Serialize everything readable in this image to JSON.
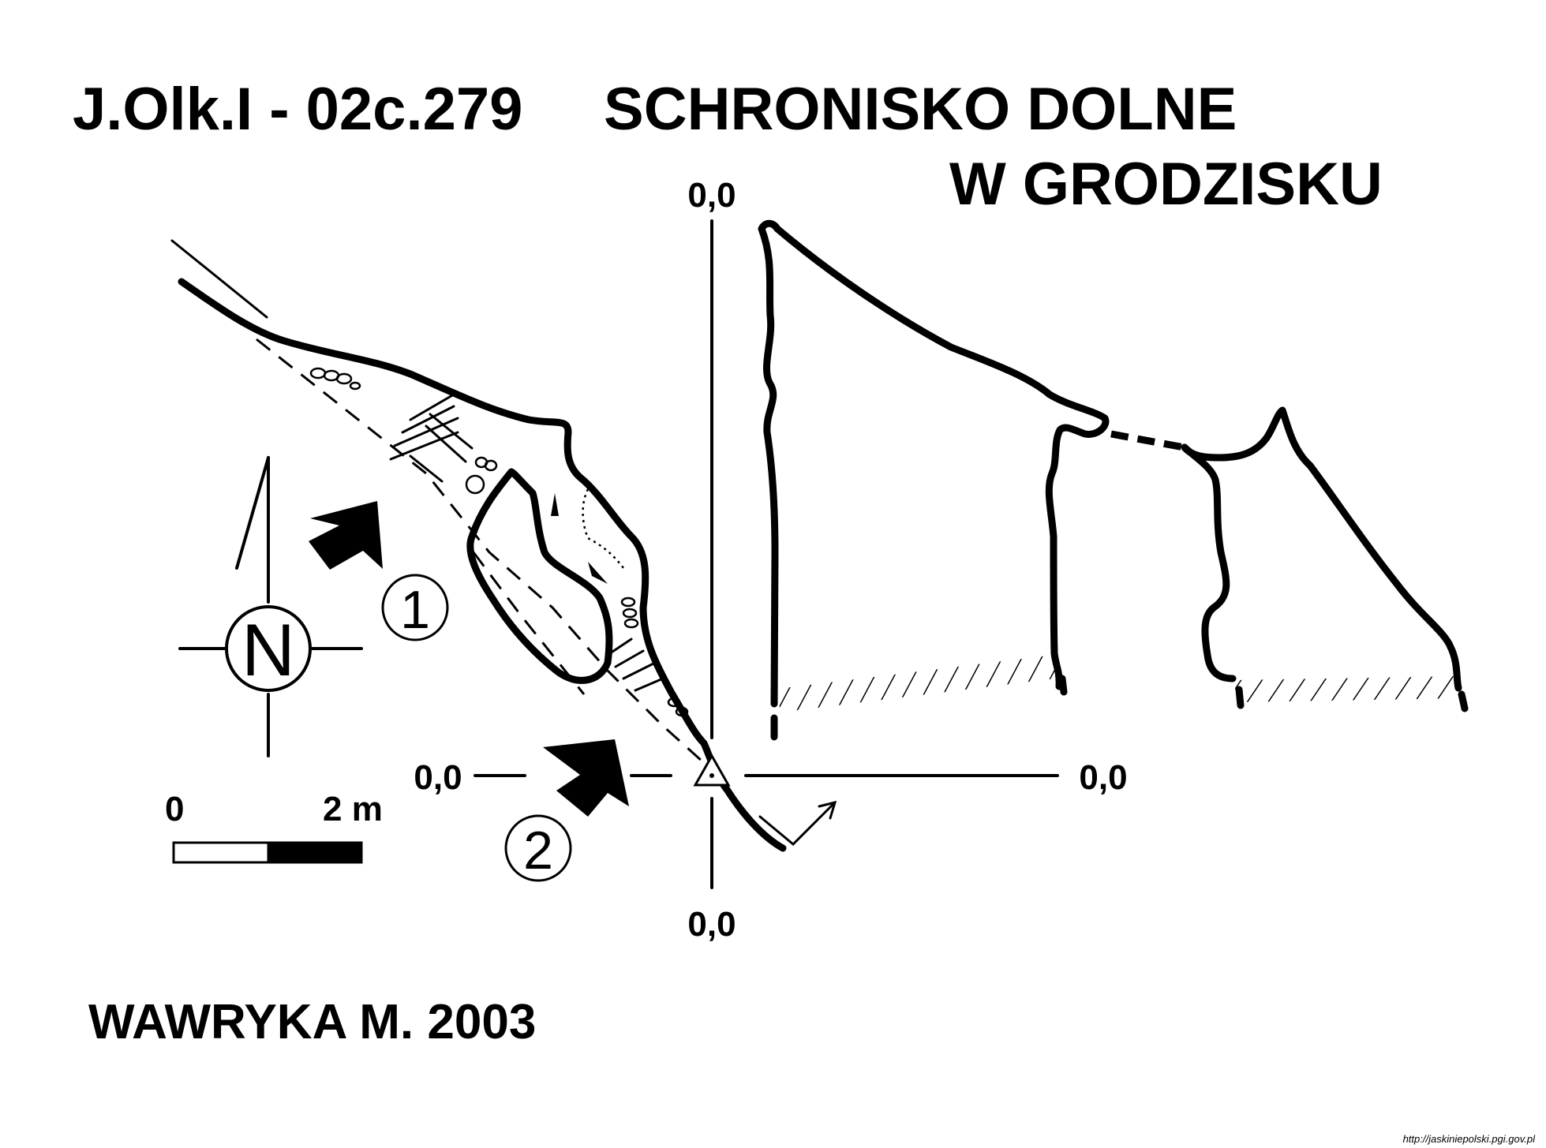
{
  "title": {
    "code": "J.Olk.I - 02c.279",
    "name_line1": "SCHRONISKO DOLNE",
    "name_line2": "W GRODZISKU"
  },
  "profile_labels": {
    "top": "0,0",
    "left": "0,0",
    "right": "0,0",
    "bottom": "0,0"
  },
  "compass": {
    "letter": "N"
  },
  "scale_bar": {
    "start_label": "0",
    "end_label": "2 m"
  },
  "section_markers": [
    "1",
    "2"
  ],
  "author": "WAWRYKA M. 2003",
  "source_url": "http://jaskiniepolski.pgi.gov.pl",
  "icons": [
    "north-arrow-icon",
    "entrance-arrow-icon",
    "datum-triangle-icon",
    "section-arrow-icon"
  ],
  "colors": {
    "ink": "#000000",
    "paper": "#ffffff"
  }
}
